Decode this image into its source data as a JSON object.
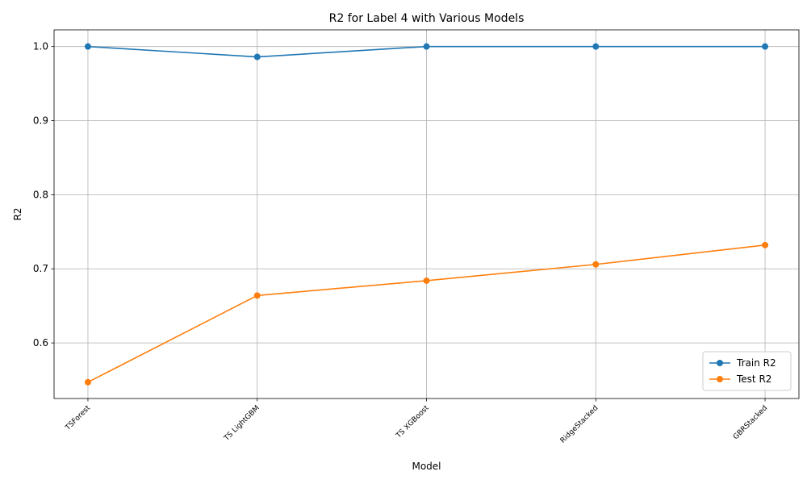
{
  "chart_data": {
    "type": "line",
    "title": "R2 for Label 4 with Various Models",
    "xlabel": "Model",
    "ylabel": "R2",
    "categories": [
      "TSForest",
      "TS LightGBM",
      "TS XGBoost",
      "RidgeStacked",
      "GBRStacked"
    ],
    "series": [
      {
        "name": "Train R2",
        "color": "#1f77b4",
        "values": [
          1.0,
          0.986,
          1.0,
          1.0,
          1.0
        ]
      },
      {
        "name": "Test R2",
        "color": "#ff7f0e",
        "values": [
          0.547,
          0.664,
          0.684,
          0.706,
          0.732
        ]
      }
    ],
    "ylim": [
      0.525,
      1.0225
    ],
    "yticks": [
      "0.6",
      "0.7",
      "0.8",
      "0.9",
      "1.0"
    ],
    "grid": true,
    "legend_position": "lower-right"
  }
}
